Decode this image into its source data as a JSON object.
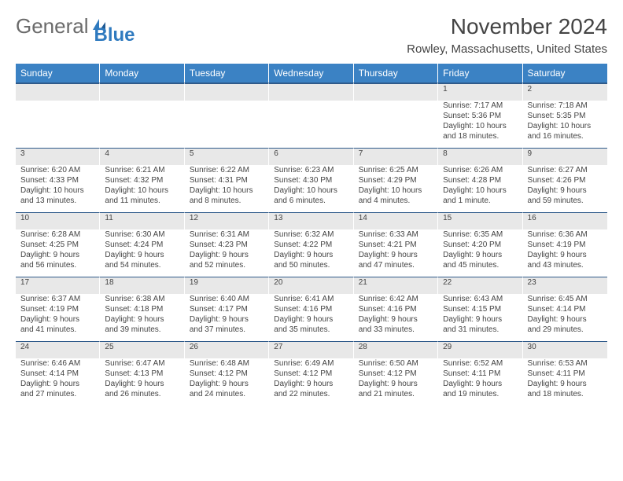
{
  "logo": {
    "text1": "General",
    "text2": "Blue"
  },
  "title": "November 2024",
  "location": "Rowley, Massachusetts, United States",
  "colors": {
    "header_bg": "#3b82c4",
    "header_text": "#ffffff",
    "daynum_bg": "#e8e8e8",
    "rule": "#2f5a8a",
    "body_text": "#444444",
    "logo_gray": "#6b6b6b",
    "logo_blue": "#2f7abf"
  },
  "weekdays": [
    "Sunday",
    "Monday",
    "Tuesday",
    "Wednesday",
    "Thursday",
    "Friday",
    "Saturday"
  ],
  "weeks": [
    [
      null,
      null,
      null,
      null,
      null,
      {
        "d": "1",
        "sr": "Sunrise: 7:17 AM",
        "ss": "Sunset: 5:36 PM",
        "dl1": "Daylight: 10 hours",
        "dl2": "and 18 minutes."
      },
      {
        "d": "2",
        "sr": "Sunrise: 7:18 AM",
        "ss": "Sunset: 5:35 PM",
        "dl1": "Daylight: 10 hours",
        "dl2": "and 16 minutes."
      }
    ],
    [
      {
        "d": "3",
        "sr": "Sunrise: 6:20 AM",
        "ss": "Sunset: 4:33 PM",
        "dl1": "Daylight: 10 hours",
        "dl2": "and 13 minutes."
      },
      {
        "d": "4",
        "sr": "Sunrise: 6:21 AM",
        "ss": "Sunset: 4:32 PM",
        "dl1": "Daylight: 10 hours",
        "dl2": "and 11 minutes."
      },
      {
        "d": "5",
        "sr": "Sunrise: 6:22 AM",
        "ss": "Sunset: 4:31 PM",
        "dl1": "Daylight: 10 hours",
        "dl2": "and 8 minutes."
      },
      {
        "d": "6",
        "sr": "Sunrise: 6:23 AM",
        "ss": "Sunset: 4:30 PM",
        "dl1": "Daylight: 10 hours",
        "dl2": "and 6 minutes."
      },
      {
        "d": "7",
        "sr": "Sunrise: 6:25 AM",
        "ss": "Sunset: 4:29 PM",
        "dl1": "Daylight: 10 hours",
        "dl2": "and 4 minutes."
      },
      {
        "d": "8",
        "sr": "Sunrise: 6:26 AM",
        "ss": "Sunset: 4:28 PM",
        "dl1": "Daylight: 10 hours",
        "dl2": "and 1 minute."
      },
      {
        "d": "9",
        "sr": "Sunrise: 6:27 AM",
        "ss": "Sunset: 4:26 PM",
        "dl1": "Daylight: 9 hours",
        "dl2": "and 59 minutes."
      }
    ],
    [
      {
        "d": "10",
        "sr": "Sunrise: 6:28 AM",
        "ss": "Sunset: 4:25 PM",
        "dl1": "Daylight: 9 hours",
        "dl2": "and 56 minutes."
      },
      {
        "d": "11",
        "sr": "Sunrise: 6:30 AM",
        "ss": "Sunset: 4:24 PM",
        "dl1": "Daylight: 9 hours",
        "dl2": "and 54 minutes."
      },
      {
        "d": "12",
        "sr": "Sunrise: 6:31 AM",
        "ss": "Sunset: 4:23 PM",
        "dl1": "Daylight: 9 hours",
        "dl2": "and 52 minutes."
      },
      {
        "d": "13",
        "sr": "Sunrise: 6:32 AM",
        "ss": "Sunset: 4:22 PM",
        "dl1": "Daylight: 9 hours",
        "dl2": "and 50 minutes."
      },
      {
        "d": "14",
        "sr": "Sunrise: 6:33 AM",
        "ss": "Sunset: 4:21 PM",
        "dl1": "Daylight: 9 hours",
        "dl2": "and 47 minutes."
      },
      {
        "d": "15",
        "sr": "Sunrise: 6:35 AM",
        "ss": "Sunset: 4:20 PM",
        "dl1": "Daylight: 9 hours",
        "dl2": "and 45 minutes."
      },
      {
        "d": "16",
        "sr": "Sunrise: 6:36 AM",
        "ss": "Sunset: 4:19 PM",
        "dl1": "Daylight: 9 hours",
        "dl2": "and 43 minutes."
      }
    ],
    [
      {
        "d": "17",
        "sr": "Sunrise: 6:37 AM",
        "ss": "Sunset: 4:19 PM",
        "dl1": "Daylight: 9 hours",
        "dl2": "and 41 minutes."
      },
      {
        "d": "18",
        "sr": "Sunrise: 6:38 AM",
        "ss": "Sunset: 4:18 PM",
        "dl1": "Daylight: 9 hours",
        "dl2": "and 39 minutes."
      },
      {
        "d": "19",
        "sr": "Sunrise: 6:40 AM",
        "ss": "Sunset: 4:17 PM",
        "dl1": "Daylight: 9 hours",
        "dl2": "and 37 minutes."
      },
      {
        "d": "20",
        "sr": "Sunrise: 6:41 AM",
        "ss": "Sunset: 4:16 PM",
        "dl1": "Daylight: 9 hours",
        "dl2": "and 35 minutes."
      },
      {
        "d": "21",
        "sr": "Sunrise: 6:42 AM",
        "ss": "Sunset: 4:16 PM",
        "dl1": "Daylight: 9 hours",
        "dl2": "and 33 minutes."
      },
      {
        "d": "22",
        "sr": "Sunrise: 6:43 AM",
        "ss": "Sunset: 4:15 PM",
        "dl1": "Daylight: 9 hours",
        "dl2": "and 31 minutes."
      },
      {
        "d": "23",
        "sr": "Sunrise: 6:45 AM",
        "ss": "Sunset: 4:14 PM",
        "dl1": "Daylight: 9 hours",
        "dl2": "and 29 minutes."
      }
    ],
    [
      {
        "d": "24",
        "sr": "Sunrise: 6:46 AM",
        "ss": "Sunset: 4:14 PM",
        "dl1": "Daylight: 9 hours",
        "dl2": "and 27 minutes."
      },
      {
        "d": "25",
        "sr": "Sunrise: 6:47 AM",
        "ss": "Sunset: 4:13 PM",
        "dl1": "Daylight: 9 hours",
        "dl2": "and 26 minutes."
      },
      {
        "d": "26",
        "sr": "Sunrise: 6:48 AM",
        "ss": "Sunset: 4:12 PM",
        "dl1": "Daylight: 9 hours",
        "dl2": "and 24 minutes."
      },
      {
        "d": "27",
        "sr": "Sunrise: 6:49 AM",
        "ss": "Sunset: 4:12 PM",
        "dl1": "Daylight: 9 hours",
        "dl2": "and 22 minutes."
      },
      {
        "d": "28",
        "sr": "Sunrise: 6:50 AM",
        "ss": "Sunset: 4:12 PM",
        "dl1": "Daylight: 9 hours",
        "dl2": "and 21 minutes."
      },
      {
        "d": "29",
        "sr": "Sunrise: 6:52 AM",
        "ss": "Sunset: 4:11 PM",
        "dl1": "Daylight: 9 hours",
        "dl2": "and 19 minutes."
      },
      {
        "d": "30",
        "sr": "Sunrise: 6:53 AM",
        "ss": "Sunset: 4:11 PM",
        "dl1": "Daylight: 9 hours",
        "dl2": "and 18 minutes."
      }
    ]
  ]
}
